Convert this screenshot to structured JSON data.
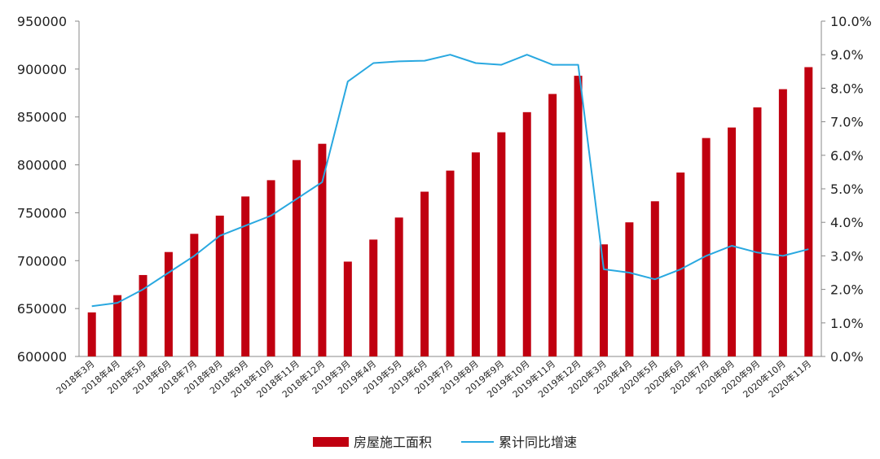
{
  "chart_data": {
    "type": "bar",
    "categories": [
      "2018年3月",
      "2018年4月",
      "2018年5月",
      "2018年6月",
      "2018年7月",
      "2018年8月",
      "2018年9月",
      "2018年10月",
      "2018年11月",
      "2018年12月",
      "2019年3月",
      "2019年4月",
      "2019年5月",
      "2019年6月",
      "2019年7月",
      "2019年8月",
      "2019年9月",
      "2019年10月",
      "2019年11月",
      "2019年12月",
      "2020年3月",
      "2020年4月",
      "2020年5月",
      "2020年6月",
      "2020年7月",
      "2020年8月",
      "2020年9月",
      "2020年10月",
      "2020年11月"
    ],
    "series": [
      {
        "name": "房屋施工面积",
        "type": "bar",
        "axis": "left",
        "color": "#c00010",
        "values": [
          646000,
          664000,
          685000,
          709000,
          728000,
          747000,
          767000,
          784000,
          805000,
          822000,
          699000,
          722000,
          745000,
          772000,
          794000,
          813000,
          834000,
          855000,
          874000,
          893000,
          717000,
          740000,
          762000,
          792000,
          828000,
          839000,
          860000,
          879000,
          902000
        ]
      },
      {
        "name": "累计同比增速",
        "type": "line",
        "axis": "right",
        "color": "#29a8e0",
        "values": [
          1.5,
          1.6,
          2.0,
          2.5,
          3.0,
          3.6,
          3.9,
          4.2,
          4.7,
          5.2,
          8.2,
          8.75,
          8.8,
          8.82,
          9.0,
          8.75,
          8.7,
          9.0,
          8.7,
          8.7,
          2.6,
          2.5,
          2.3,
          2.6,
          3.0,
          3.3,
          3.1,
          3.0,
          3.2
        ]
      }
    ],
    "ylim_left": [
      600000,
      950000
    ],
    "yticks_left": [
      "600000",
      "650000",
      "700000",
      "750000",
      "800000",
      "850000",
      "900000",
      "950000"
    ],
    "ylim_right": [
      0,
      10
    ],
    "yticks_right": [
      "0.0%",
      "1.0%",
      "2.0%",
      "3.0%",
      "4.0%",
      "5.0%",
      "6.0%",
      "7.0%",
      "8.0%",
      "9.0%",
      "10.0%"
    ],
    "legend_position": "bottom",
    "grid": false
  }
}
